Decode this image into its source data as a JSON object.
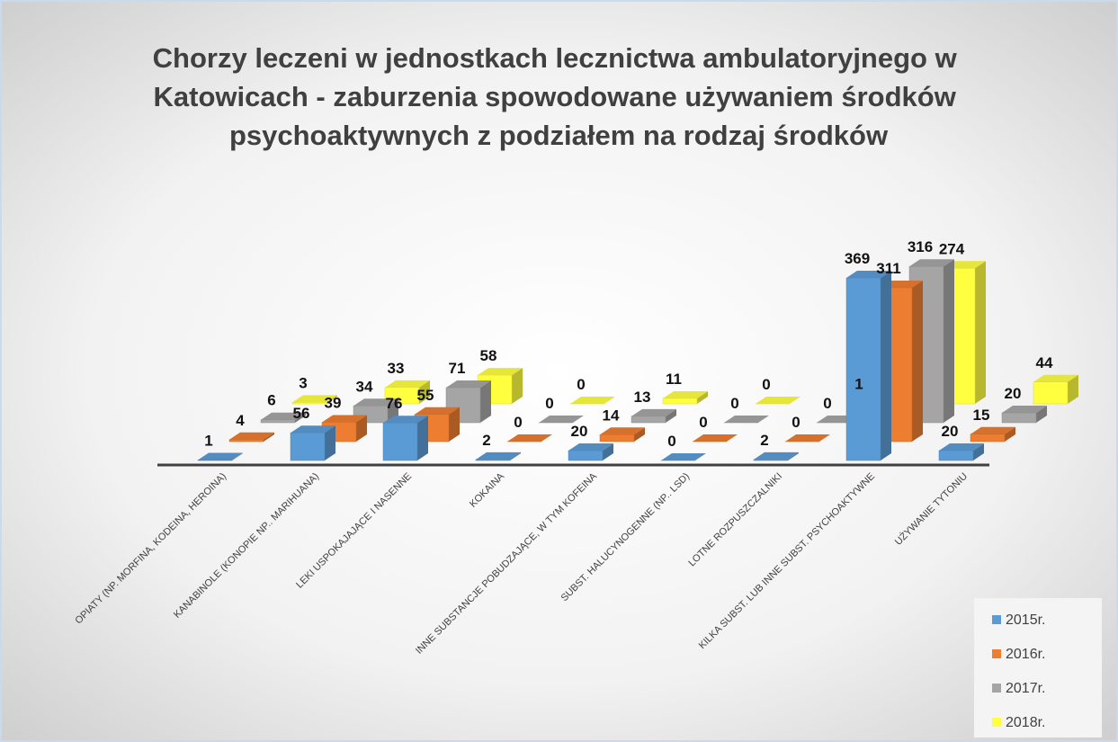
{
  "chart_data": {
    "type": "bar3d",
    "title": [
      "Chorzy leczeni w jednostkach lecznictwa ambulatoryjnego w",
      "Katowicach - zaburzenia spowodowane używaniem środków",
      "psychoaktywnych z podziałem na rodzaj środków"
    ],
    "categories": [
      "OPIATY (NP. MORFINA, KODEINA, HEROINA)",
      "KANABINOLE (KONOPIE NP.. MARIHUANA)",
      "LEKI USPOKAJAJĄCE I NASENNE",
      "KOKAINA",
      "INNE SUBSTANCJE POBUDZAJĄCE, W TYM KOFEINA",
      "SUBST. HALUCYNOGENNE (NP.. LSD)",
      "LOTNE ROZPUSZCZALNIKI",
      "KILKA SUBST. LUB INNE SUBST. PSYCHOAKTYWNE",
      "UŻYWANIE TYTONIU"
    ],
    "series": [
      {
        "name": "2015r.",
        "color": "#5b9bd5",
        "values": [
          1,
          56,
          76,
          2,
          20,
          0,
          2,
          369,
          20
        ]
      },
      {
        "name": "2016r.",
        "color": "#ed7d31",
        "values": [
          4,
          39,
          55,
          0,
          14,
          0,
          0,
          311,
          15
        ]
      },
      {
        "name": "2017r.",
        "color": "#a5a5a5",
        "values": [
          6,
          34,
          71,
          0,
          13,
          0,
          0,
          316,
          20
        ]
      },
      {
        "name": "2018r.",
        "color": "#ffff40",
        "values": [
          3,
          33,
          58,
          0,
          11,
          0,
          1,
          274,
          44
        ]
      }
    ],
    "legend": "bottom-right"
  }
}
